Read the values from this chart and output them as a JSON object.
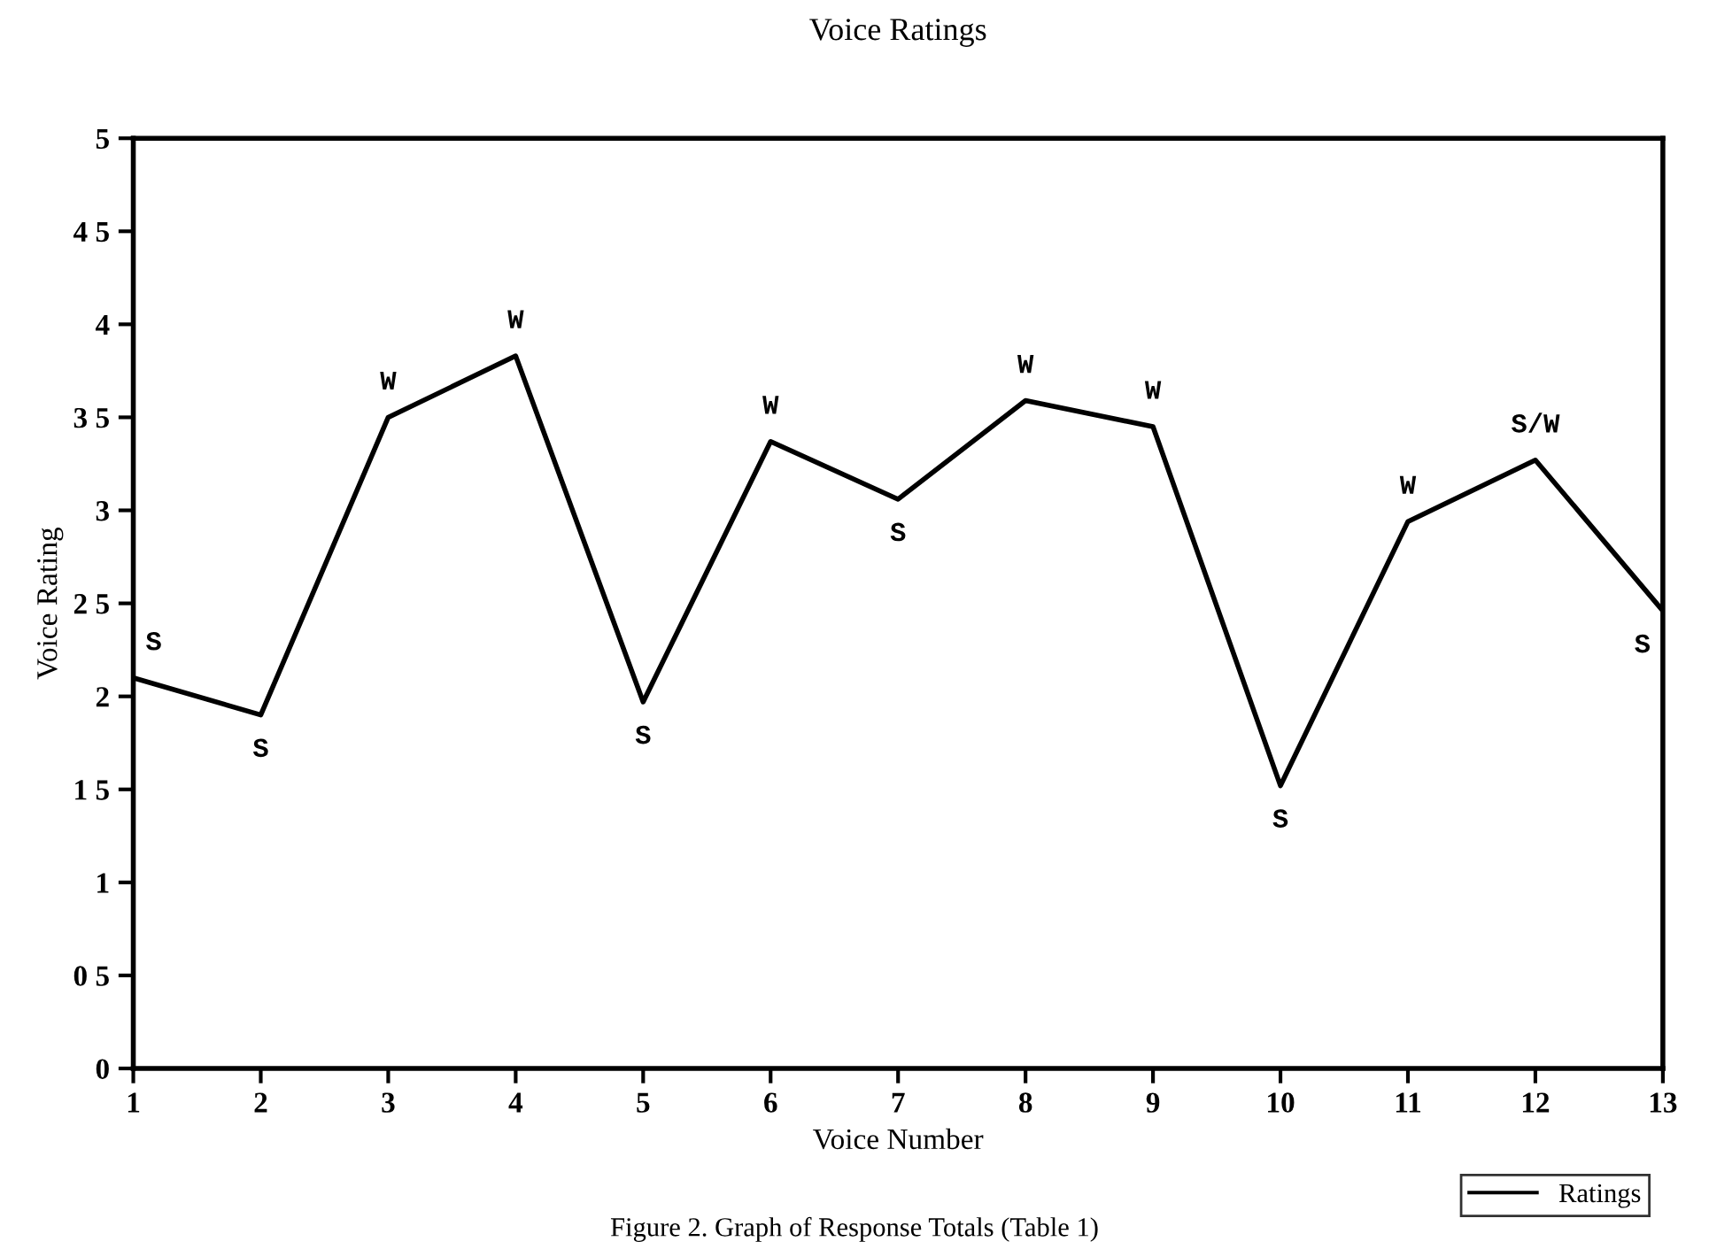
{
  "chart_data": {
    "type": "line",
    "title": "Voice Ratings",
    "xlabel": "Voice Number",
    "ylabel": "Voice Rating",
    "x": [
      1,
      2,
      3,
      4,
      5,
      6,
      7,
      8,
      9,
      10,
      11,
      12,
      13
    ],
    "series": [
      {
        "name": "Ratings",
        "color": "#000000",
        "values": [
          2.1,
          1.9,
          3.5,
          3.83,
          1.97,
          3.37,
          3.06,
          3.59,
          3.45,
          1.52,
          2.94,
          3.27,
          2.46
        ]
      }
    ],
    "xlim": [
      1,
      13
    ],
    "xticks": [
      1,
      2,
      3,
      4,
      5,
      6,
      7,
      8,
      9,
      10,
      11,
      12,
      13
    ],
    "ylim": [
      0,
      5
    ],
    "yticks": [
      0,
      {
        "value": 0.5,
        "label": "0 5"
      },
      1,
      {
        "value": 1.5,
        "label": "1 5"
      },
      2,
      {
        "value": 2.5,
        "label": "2 5"
      },
      3,
      {
        "value": 3.5,
        "label": "3 5"
      },
      4,
      {
        "value": 4.5,
        "label": "4 5"
      },
      5
    ],
    "grid": false,
    "legend": "bottom right",
    "marker": "none",
    "line_style": "solid",
    "annotations": [
      {
        "text": "S",
        "x": 1,
        "y": 2.1
      },
      {
        "text": "S",
        "x": 2,
        "y": 1.9
      },
      {
        "text": "W",
        "x": 3,
        "y": 3.5
      },
      {
        "text": "W",
        "x": 4,
        "y": 3.83
      },
      {
        "text": "S",
        "x": 5,
        "y": 1.97
      },
      {
        "text": "W",
        "x": 6,
        "y": 3.37
      },
      {
        "text": "S",
        "x": 7,
        "y": 3.06
      },
      {
        "text": "W",
        "x": 8,
        "y": 3.59
      },
      {
        "text": "W",
        "x": 9,
        "y": 3.45
      },
      {
        "text": "S",
        "x": 10,
        "y": 1.52
      },
      {
        "text": "W",
        "x": 11,
        "y": 2.94
      },
      {
        "text": "S/W",
        "x": 12,
        "y": 3.27
      },
      {
        "text": "S",
        "x": 13,
        "y": 2.46
      },
      "Figure 2. Graph of Response Totals (Table 1)"
    ]
  }
}
